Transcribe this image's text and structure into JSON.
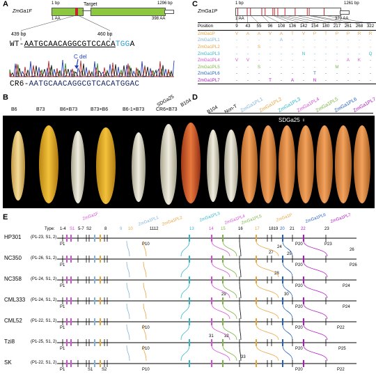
{
  "panels": {
    "A": "A",
    "B": "B",
    "C": "C",
    "D": "D",
    "E": "E"
  },
  "panel_a": {
    "gene": "ZmGa1F",
    "start_bp": "1 bp",
    "end_bp": "1296 bp",
    "target": "Target",
    "start_aa": "1 AA",
    "end_aa": "398 AA",
    "pos_left": "439 bp",
    "pos_right": "460 bp",
    "wt_label": "WT-",
    "wt_seq_pre": "AATGCAACAGGCGTCCACA",
    "wt_seq_pam": "TGG",
    "wt_seq_post": "A",
    "cdel": "C del",
    "cr6_label": "CR6-",
    "cr6_seq": "AATGCAACAGGCGTCACATGGAC",
    "colors": {
      "gene_bar": "#8dc63f",
      "target": "#c1272d",
      "pam": "#2e9bd6",
      "cdel": "#1f3fbf"
    }
  },
  "panel_b": {
    "labels": [
      "B6",
      "B73",
      "B6×B73",
      "B73×B6",
      "B6-1×B73",
      "CR6×B73"
    ]
  },
  "panel_c": {
    "gene": "ZmGa1P",
    "start_bp": "1 bp",
    "end_bp": "1261 bp",
    "start_aa": "1 AA",
    "end_aa": "379 AA",
    "position_header": "Position",
    "positions": [
      "9",
      "43",
      "55",
      "96",
      "108",
      "136",
      "142",
      "154",
      "180",
      "217",
      "261",
      "268",
      "322"
    ],
    "rows": [
      {
        "name": "ZmGa1P",
        "color": "#e8a33d",
        "cells": [
          "V",
          "A",
          "A",
          "V",
          "A",
          "T",
          "V",
          "P",
          "T",
          "P",
          "P",
          "R",
          "R"
        ]
      },
      {
        "name": "ZmGa1PL1",
        "color": "#7fb3d9",
        "cells": [
          "-",
          "-",
          "-",
          "-",
          "A",
          "-",
          "-",
          "-",
          "-",
          "-",
          "-",
          "-",
          "-"
        ]
      },
      {
        "name": "ZmGa1PL2",
        "color": "#e8a33d",
        "cells": [
          "-",
          "-",
          "S",
          "-",
          "-",
          "-",
          "-",
          "-",
          "-",
          "-",
          "-",
          "-",
          "-"
        ]
      },
      {
        "name": "ZmGa1PL3",
        "color": "#2fb6c9",
        "cells": [
          "-",
          "-",
          "-",
          "-",
          "-",
          "-",
          "N",
          "-",
          "-",
          "-",
          "-",
          "-",
          "Q"
        ]
      },
      {
        "name": "ZmGa1PL4",
        "color": "#d64cd6",
        "cells": [
          "V",
          "V",
          "-",
          "-",
          "-",
          "-",
          "-",
          "-",
          "-",
          "-",
          "A",
          "K",
          "-"
        ]
      },
      {
        "name": "ZmGa1PL5",
        "color": "#7cb342",
        "cells": [
          "-",
          "-",
          "S",
          "-",
          "-",
          "-",
          "-",
          "-",
          "-",
          "M",
          "-",
          "-",
          "-"
        ]
      },
      {
        "name": "ZmGa1PL6",
        "color": "#1f5fbf",
        "cells": [
          "-",
          "-",
          "-",
          "-",
          "-",
          "-",
          "-",
          "T",
          "-",
          "-",
          "-",
          "-",
          "-"
        ]
      },
      {
        "name": "ZmGa1PL7",
        "color": "#b015c4",
        "cells": [
          "-",
          "-",
          "-",
          "T",
          "-",
          "A",
          "-",
          "N",
          "-",
          "-",
          "-",
          "-",
          "-"
        ]
      }
    ]
  },
  "panel_d": {
    "labels": [
      "SDGa25",
      "B104",
      "B104",
      "Non-T",
      "ZmGa1PL1",
      "ZmGa1PL2",
      "ZmGa1PL3",
      "ZmGa1PL4",
      "ZmGa1PL5",
      "ZmGa1PL6",
      "ZmGa1PL7"
    ],
    "label_colors": [
      "#000",
      "#000",
      "#000",
      "#000",
      "#7fb3d9",
      "#e8a33d",
      "#2fb6c9",
      "#d64cd6",
      "#7cb342",
      "#1f5fbf",
      "#b015c4"
    ],
    "female": "SDGa25 ♀"
  },
  "panel_e": {
    "type_label": "Type:",
    "type_numbers": [
      "1-4",
      "S1",
      "5-7",
      "S2",
      "8",
      "9",
      "10",
      "1112",
      "13",
      "14",
      "15",
      "16",
      "17",
      "1819",
      "20",
      "21",
      "22",
      "23"
    ],
    "gene_headers": [
      {
        "name": "ZmGa1F",
        "color": "#d64cd6"
      },
      {
        "name": "ZmGa1PL1",
        "color": "#7fb3d9"
      },
      {
        "name": "ZmGa1PL2",
        "color": "#e8a33d"
      },
      {
        "name": "ZmGa1PL3",
        "color": "#2fb6c9"
      },
      {
        "name": "ZmGa1PL4",
        "color": "#d64cd6"
      },
      {
        "name": "ZmGa1PL5",
        "color": "#7cb342"
      },
      {
        "name": "ZmGa1P",
        "color": "#e8a33d"
      },
      {
        "name": "ZmGa1PL6",
        "color": "#1f5fbf"
      },
      {
        "name": "ZmGa1PL7",
        "color": "#b015c4"
      }
    ],
    "lines": [
      {
        "name": "HP301",
        "info": "(P1-23, S1, 2)",
        "labels_below": [
          "P1",
          "P10",
          "P20",
          "P23"
        ]
      },
      {
        "name": "NC350",
        "info": "(P1-26, S1, 2)",
        "labels_below": [
          "P1",
          "P20",
          "P26"
        ]
      },
      {
        "name": "NC358",
        "info": "(P1-24, S1, 2)",
        "labels_below": [
          "P1",
          "P20",
          "P24"
        ]
      },
      {
        "name": "CML333",
        "info": "(P1-24, S1, 2)",
        "labels_below": [
          "P1",
          "P20",
          "P24"
        ]
      },
      {
        "name": "CML52",
        "info": "(P1-22, S1, 2)",
        "labels_below": [
          "P1",
          "P10",
          "P20",
          "P22"
        ]
      },
      {
        "name": "Tzi8",
        "info": "(P1-25, S1, 2)",
        "labels_below": [
          "P1",
          "P10",
          "P20",
          "P25"
        ]
      },
      {
        "name": "SK",
        "info": "(P1-22, S1, 2)",
        "labels_below": [
          "P1",
          "S1",
          "S2",
          "P10",
          "P20",
          "P22"
        ]
      }
    ],
    "inline_numbers": [
      "24",
      "25",
      "26",
      "27",
      "28",
      "29",
      "30",
      "31",
      "32",
      "33"
    ]
  }
}
